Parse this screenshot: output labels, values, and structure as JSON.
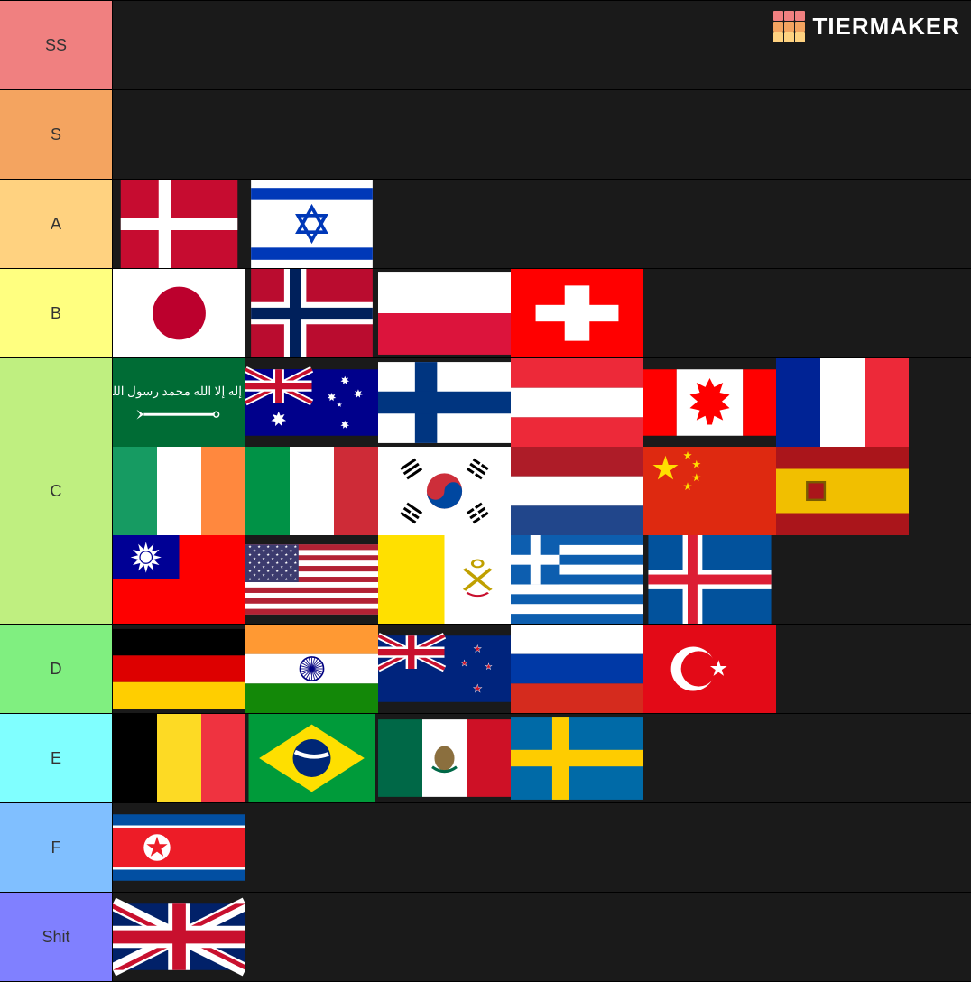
{
  "watermark": {
    "text": "TIERMAKER",
    "grid_colors": [
      "#f08080",
      "#f08080",
      "#f08080",
      "#f4a460",
      "#f4a460",
      "#f4a460",
      "#ffd280",
      "#ffd280",
      "#ffd280"
    ]
  },
  "tiers": [
    {
      "label": "SS",
      "color": "#f08080",
      "items": []
    },
    {
      "label": "S",
      "color": "#f4a460",
      "items": []
    },
    {
      "label": "A",
      "color": "#ffd280",
      "items": [
        "denmark",
        "israel"
      ]
    },
    {
      "label": "B",
      "color": "#ffff80",
      "items": [
        "japan",
        "norway",
        "poland",
        "switzerland"
      ]
    },
    {
      "label": "C",
      "color": "#bfef80",
      "items": [
        "saudi",
        "australia",
        "finland",
        "austria",
        "canada",
        "france",
        "ireland",
        "italy",
        "southkorea",
        "netherlands",
        "china",
        "spain",
        "taiwan",
        "usa",
        "vatican",
        "greece",
        "iceland"
      ]
    },
    {
      "label": "D",
      "color": "#80ef80",
      "items": [
        "germany",
        "india",
        "newzealand",
        "russia",
        "turkey"
      ]
    },
    {
      "label": "E",
      "color": "#80ffff",
      "items": [
        "belgium",
        "brazil",
        "mexico",
        "sweden"
      ]
    },
    {
      "label": "F",
      "color": "#80bfff",
      "items": [
        "northkorea"
      ]
    },
    {
      "label": "Shit",
      "color": "#8080ff",
      "items": [
        "uk"
      ]
    }
  ],
  "flag_colors": {
    "red": "#c8102e",
    "dk_red": "#c60c30",
    "white": "#ffffff",
    "blue": "#003897",
    "is_blue": "#0038b8",
    "jp_red": "#bc002d",
    "no_red": "#ba0c2f",
    "no_blue": "#00205b",
    "pl_red": "#dc143c",
    "ch_red": "#ff0000",
    "sa_green": "#006c35",
    "au_blue": "#00008b",
    "fi_blue": "#003580",
    "at_red": "#ed2939",
    "ca_red": "#ff0000",
    "fr_blue": "#002395",
    "fr_red": "#ed2939",
    "ie_green": "#169b62",
    "ie_orange": "#ff883e",
    "it_green": "#009246",
    "it_red": "#ce2b37",
    "nl_red": "#ae1c28",
    "nl_blue": "#21468b",
    "cn_red": "#de2910",
    "cn_yellow": "#ffde00",
    "es_red": "#aa151b",
    "es_yellow": "#f1bf00",
    "tw_blue": "#000095",
    "tw_red": "#fe0000",
    "us_red": "#b22234",
    "us_blue": "#3c3b6e",
    "va_yellow": "#ffe000",
    "gr_blue": "#0d5eaf",
    "is_blue2": "#02529c",
    "is_red": "#dc1e35",
    "de_black": "#000000",
    "de_red": "#dd0000",
    "de_yellow": "#ffce00",
    "in_orange": "#ff9933",
    "in_green": "#138808",
    "in_blue": "#000080",
    "nz_blue": "#00247d",
    "nz_red": "#cc142b",
    "ru_blue": "#0039a6",
    "ru_red": "#d52b1e",
    "tr_red": "#e30a17",
    "be_black": "#000000",
    "be_yellow": "#fdda24",
    "be_red": "#ef3340",
    "br_green": "#009b3a",
    "br_yellow": "#fedf00",
    "br_blue": "#002776",
    "mx_green": "#006847",
    "mx_red": "#ce1126",
    "se_blue": "#006aa7",
    "se_yellow": "#fecc00",
    "kp_red": "#ed1c27",
    "kp_blue": "#024fa2",
    "uk_blue": "#012169",
    "uk_red": "#c8102e",
    "kr_red": "#cd2e3a",
    "kr_blue": "#0047a0"
  }
}
